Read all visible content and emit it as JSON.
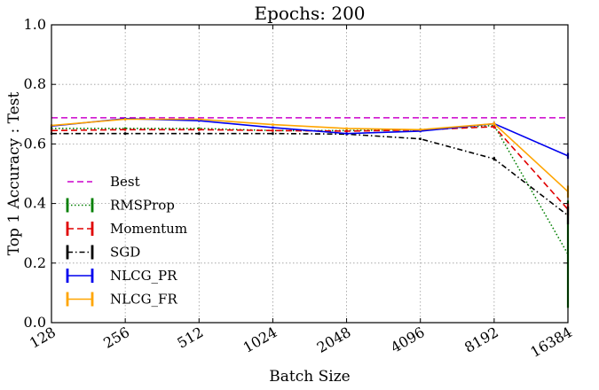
{
  "chart_data": {
    "type": "line",
    "title": "Epochs: 200",
    "xlabel": "Batch Size",
    "ylabel": "Top 1 Accuracy : Test",
    "categories": [
      "128",
      "256",
      "512",
      "1024",
      "2048",
      "4096",
      "8192",
      "16384"
    ],
    "ylim": [
      0.0,
      1.0
    ],
    "yticks": [
      "0.0",
      "0.2",
      "0.4",
      "0.6",
      "0.8",
      "1.0"
    ],
    "grid": true,
    "legend_position": "lower-left",
    "best": {
      "name": "Best",
      "value": 0.688,
      "color": "#cc00cc",
      "style": "dashed"
    },
    "series": [
      {
        "name": "RMSProp",
        "color": "#007f00",
        "style": "dotted",
        "values": [
          0.652,
          0.652,
          0.652,
          0.645,
          0.645,
          0.648,
          0.662,
          0.23
        ],
        "errors": [
          0.004,
          0.004,
          0.004,
          0.004,
          0.004,
          0.004,
          0.006,
          0.18
        ]
      },
      {
        "name": "Momentum",
        "color": "#e00000",
        "style": "dashed",
        "values": [
          0.645,
          0.648,
          0.648,
          0.645,
          0.643,
          0.647,
          0.658,
          0.38
        ],
        "errors": [
          0.004,
          0.004,
          0.004,
          0.004,
          0.004,
          0.004,
          0.006,
          0.02
        ]
      },
      {
        "name": "SGD",
        "color": "#000000",
        "style": "dashdot",
        "values": [
          0.635,
          0.635,
          0.635,
          0.635,
          0.633,
          0.617,
          0.55,
          0.36
        ],
        "errors": [
          0.004,
          0.004,
          0.004,
          0.004,
          0.004,
          0.004,
          0.006,
          0.03
        ]
      },
      {
        "name": "NLCG_PR",
        "color": "#0000ee",
        "style": "solid",
        "values": [
          0.66,
          0.685,
          0.678,
          0.655,
          0.635,
          0.643,
          0.668,
          0.56
        ],
        "errors": [
          0.004,
          0.004,
          0.004,
          0.004,
          0.004,
          0.004,
          0.006,
          0.01
        ]
      },
      {
        "name": "NLCG_FR",
        "color": "#ffa500",
        "style": "solid",
        "values": [
          0.662,
          0.683,
          0.683,
          0.665,
          0.652,
          0.648,
          0.668,
          0.44
        ],
        "errors": [
          0.004,
          0.004,
          0.004,
          0.004,
          0.004,
          0.004,
          0.006,
          0.02
        ]
      }
    ]
  }
}
